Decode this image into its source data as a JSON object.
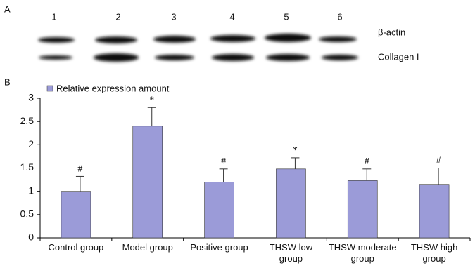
{
  "blot": {
    "label": "A",
    "lanes": [
      "1",
      "2",
      "3",
      "4",
      "5",
      "6"
    ],
    "bands": [
      "β-actin",
      "Collagen I"
    ]
  },
  "chart_data": {
    "type": "bar",
    "panel_label": "B",
    "categories": [
      "Control group",
      "Model group",
      "Positive group",
      "THSW low\ngroup",
      "THSW moderate\ngroup",
      "THSW high\ngroup"
    ],
    "series": [
      {
        "name": "Relative expression amount",
        "color": "#9b9bd8",
        "values": [
          1.0,
          2.4,
          1.2,
          1.48,
          1.23,
          1.15
        ],
        "errors": [
          0.32,
          0.4,
          0.28,
          0.24,
          0.25,
          0.35
        ],
        "annotations": [
          "#",
          "*",
          "#",
          "*",
          "#",
          "#"
        ]
      }
    ],
    "ylim": [
      0,
      3
    ],
    "yticks": [
      0,
      0.5,
      1,
      1.5,
      2,
      2.5,
      3
    ],
    "grid": false
  }
}
